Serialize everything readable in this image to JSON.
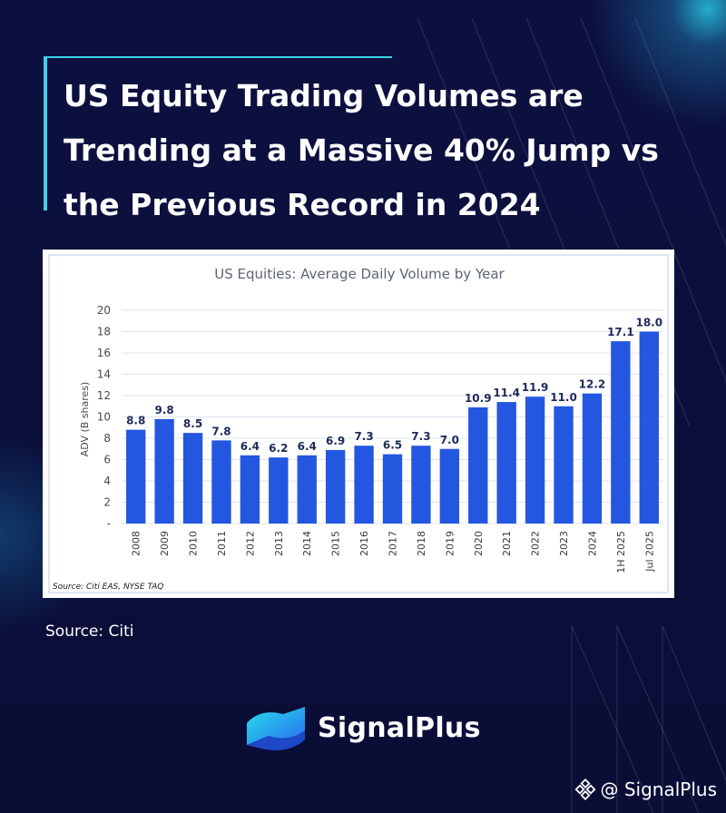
{
  "headline": "US Equity Trading Volumes are Trending at a Massive 40% Jump vs the Previous Record in 2024",
  "chart_data": {
    "type": "bar",
    "title": "US Equities:  Average Daily Volume by Year",
    "ylabel": "ADV (B shares)",
    "xlabel": "",
    "ylim": [
      0,
      20
    ],
    "yticks": [
      "-",
      "2",
      "4",
      "6",
      "8",
      "10",
      "12",
      "14",
      "16",
      "18",
      "20"
    ],
    "categories": [
      "2008",
      "2009",
      "2010",
      "2011",
      "2012",
      "2013",
      "2014",
      "2015",
      "2016",
      "2017",
      "2018",
      "2019",
      "2020",
      "2021",
      "2022",
      "2023",
      "2024",
      "1H 2025",
      "Jul 2025"
    ],
    "values": [
      8.8,
      9.8,
      8.5,
      7.8,
      6.4,
      6.2,
      6.4,
      6.9,
      7.3,
      6.5,
      7.3,
      7.0,
      10.9,
      11.4,
      11.9,
      11.0,
      12.2,
      17.1,
      18.0
    ],
    "value_labels": [
      "8.8",
      "9.8",
      "8.5",
      "7.8",
      "6.4",
      "6.2",
      "6.4",
      "6.9",
      "7.3",
      "6.5",
      "7.3",
      "7.0",
      "10.9",
      "11.4",
      "11.9",
      "11.0",
      "12.2",
      "17.1",
      "18.0"
    ],
    "grid": true,
    "legend": "none",
    "bar_color": "#2457e0",
    "source_note": "Source: Citi EAS, NYSE TAQ"
  },
  "source_caption": "Source: Citi",
  "brand": {
    "name": "SignalPlus",
    "handle": "@ SignalPlus"
  },
  "colors": {
    "background": "#0b0f3a",
    "accent": "#3fd0e6",
    "bar": "#2457e0",
    "title_text": "#5b6477"
  }
}
